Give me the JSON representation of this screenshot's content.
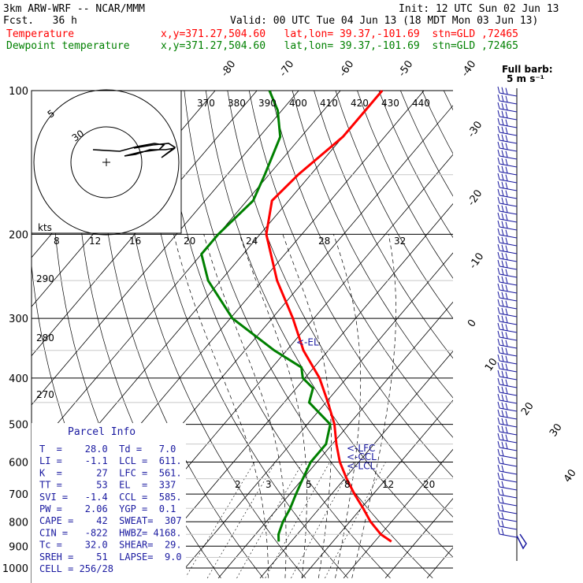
{
  "header": {
    "model": "3km ARW-WRF -- NCAR/MMM",
    "init": "Init: 12 UTC Sun 02 Jun 13",
    "fcst": "Fcst.   36 h",
    "valid": "Valid: 00 UTC Tue 04 Jun 13 (18 MDT Mon 03 Jun 13)",
    "temp_label": "Temperature",
    "dew_label": "Dewpoint temperature",
    "loc1": "x,y=371.27,504.60   lat,lon= 39.37,-101.69  stn=GLD ,72465",
    "loc2": "x,y=371.27,504.60   lat,lon= 39.37,-101.69  stn=GLD ,72465",
    "temp_color": "#ff0000",
    "dew_color": "#008000"
  },
  "barb_legend": {
    "line1": "Full barb:",
    "line2": "5 m s⁻¹"
  },
  "chart_data": {
    "type": "line",
    "y_axis": "Pressure (hPa), log scale",
    "ylim": [
      1000,
      100
    ],
    "pressure_labels": [
      "100",
      "200",
      "300",
      "400",
      "500",
      "600",
      "700",
      "800",
      "900",
      "1000"
    ],
    "isotherm_labels": [
      "-80",
      "-70",
      "-60",
      "-50",
      "-40",
      "-30",
      "-20",
      "-10",
      "0",
      "10",
      "20",
      "30",
      "40"
    ],
    "theta_labels_top": [
      "370",
      "380",
      "390",
      "400",
      "410",
      "420",
      "430",
      "440"
    ],
    "theta_labels_left": [
      "290",
      "280",
      "270"
    ],
    "mixing_ratio_labels": [
      "2",
      "3",
      "5",
      "8",
      "12",
      "20"
    ],
    "hodograph": {
      "units": "kts",
      "ring_labels": [
        "5",
        "30"
      ],
      "axis_labels": [
        "8",
        "12",
        "16",
        "20",
        "24",
        "28",
        "32"
      ]
    },
    "series": [
      {
        "name": "Temperature",
        "pressure": [
          880,
          850,
          800,
          750,
          700,
          650,
          600,
          550,
          500,
          450,
          400,
          350,
          300,
          250,
          200,
          170,
          150,
          125,
          110,
          100
        ],
        "values": [
          34.0,
          30.0,
          25.0,
          20.5,
          15.5,
          10.5,
          5.5,
          1.0,
          -3.5,
          -9.5,
          -16.5,
          -26.0,
          -35.0,
          -46.5,
          -58.5,
          -64.0,
          -63.0,
          -60.0,
          -60.0,
          -60.0
        ]
      },
      {
        "name": "Dewpoint temperature",
        "pressure": [
          880,
          850,
          800,
          750,
          700,
          650,
          600,
          550,
          500,
          450,
          420,
          400,
          380,
          350,
          300,
          250,
          220,
          200,
          170,
          150,
          125,
          110,
          100
        ],
        "values": [
          7.0,
          5.5,
          4.0,
          3.0,
          1.5,
          0.0,
          -1.5,
          -1.5,
          -4.5,
          -14.0,
          -16.0,
          -20.5,
          -23.0,
          -33.0,
          -49.5,
          -63.0,
          -70.0,
          -70.0,
          -68.5,
          -71.0,
          -75.0,
          -81.0,
          -87.0
        ]
      }
    ],
    "annotations": [
      {
        "text": "<-EL",
        "pressure": 337
      },
      {
        "text": "<-LFC",
        "pressure": 561
      },
      {
        "text": "<-CCL",
        "pressure": 585
      },
      {
        "text": "<-LCL",
        "pressure": 611
      }
    ],
    "wind_barbs": "right-hand column, full barb = 5 m/s"
  },
  "parcel_info": {
    "title": "Parcel Info",
    "rows": [
      "T  =    28.0  Td =   7.0",
      "LI =    -1.1  LCL =  611.",
      "K  =      27  LFC =  561.",
      "TT =      53  EL  =  337",
      "SVI =   -1.4  CCL =  585.",
      "PW =    2.06  YGP =  0.1",
      "CAPE =    42  SWEAT=  307",
      "CIN =   -822  HWBZ= 4168.",
      "Tc =    32.0  SHEAR=  29.",
      "SREH =    51  LAPSE=  9.0",
      "CELL = 256/28"
    ]
  }
}
